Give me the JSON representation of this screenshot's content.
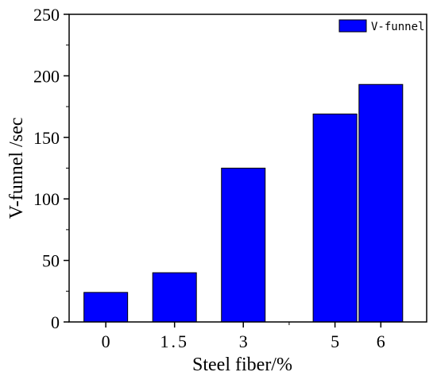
{
  "chart_data": {
    "type": "bar",
    "x": [
      0,
      1.5,
      3,
      5,
      6
    ],
    "tick_labels": [
      "0",
      "1.5",
      "3",
      "5",
      "6"
    ],
    "values": [
      24,
      40,
      125,
      169,
      193
    ],
    "series": [
      {
        "name": "V-funnel",
        "values": [
          24,
          40,
          125,
          169,
          193
        ]
      }
    ],
    "xlabel": "Steel fiber/%",
    "ylabel": "V-funnel /sec",
    "ylim": [
      0,
      250
    ],
    "yticks": [
      0,
      50,
      100,
      150,
      200,
      250
    ],
    "legend_position": "top-right",
    "grid": false,
    "bar_color": "#0000ff"
  }
}
